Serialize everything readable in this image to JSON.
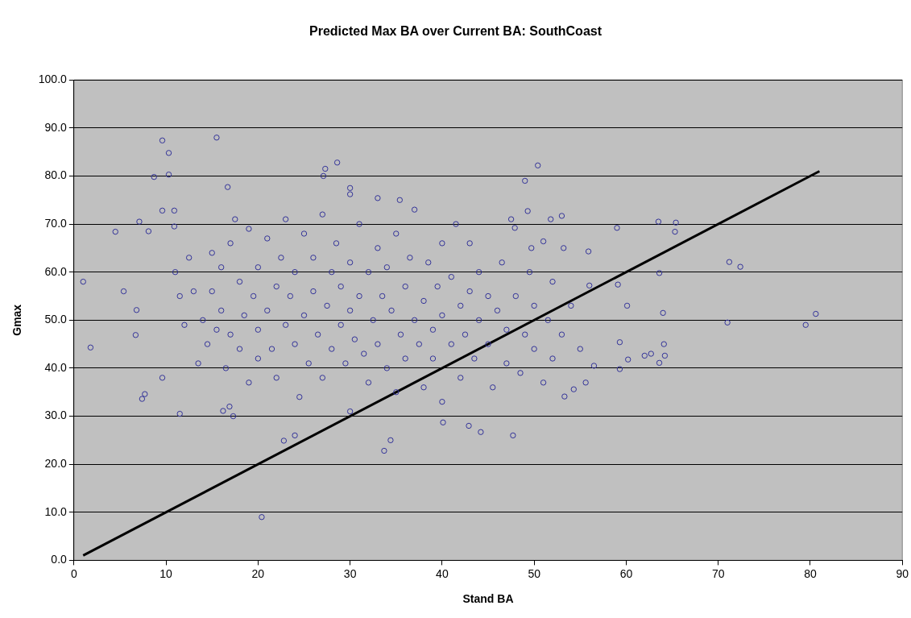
{
  "chart_data": {
    "type": "scatter",
    "title": "Predicted Max BA over Current BA: SouthCoast",
    "xlabel": "Stand BA",
    "ylabel": "Gmax",
    "xlim": [
      0,
      90
    ],
    "xticks": [
      0,
      10,
      20,
      30,
      40,
      50,
      60,
      70,
      80,
      90
    ],
    "ylim": [
      0,
      100
    ],
    "yticks": [
      {
        "value": 0,
        "label": "0.0"
      },
      {
        "value": 10,
        "label": "10.0"
      },
      {
        "value": 20,
        "label": "20.0"
      },
      {
        "value": 30,
        "label": "30.0"
      },
      {
        "value": 40,
        "label": "40.0"
      },
      {
        "value": 50,
        "label": "50.0"
      },
      {
        "value": 60,
        "label": "60.0"
      },
      {
        "value": 70,
        "label": "70.0"
      },
      {
        "value": 80,
        "label": "80.0"
      },
      {
        "value": 90,
        "label": "90.0"
      },
      {
        "value": 100,
        "label": "100.0"
      }
    ],
    "grid": "y",
    "legend": false,
    "series": [
      {
        "marker": "circle",
        "color": "#333399",
        "x": [
          1,
          1.8,
          4.5,
          5.4,
          6.8,
          6.7,
          7.1,
          7.4,
          7.7,
          8.1,
          8.7,
          9.6,
          10.3,
          10.3,
          9.6,
          10.9,
          10.9,
          9.6,
          11.5,
          15.5,
          16.7,
          16.2,
          16.9,
          17.3,
          20.4,
          22.8,
          24,
          27.3,
          27.1,
          28.6,
          30,
          30,
          33,
          35.4,
          33.7,
          34.4,
          40.1,
          42.9,
          44.2,
          47.7,
          50.4,
          49,
          49.3,
          47.9,
          51,
          51.8,
          53,
          49.7,
          53.2,
          53.3,
          54.3,
          55.6,
          56.5,
          55.9,
          56,
          59.1,
          59.3,
          59,
          59.3,
          60.2,
          60.1,
          62,
          62.7,
          63.6,
          64.1,
          64.2,
          65.3,
          65.4,
          63.5,
          63.6,
          64,
          71,
          71.2,
          72.4,
          79.5,
          80.6,
          11,
          11.5,
          12,
          12.5,
          13,
          13.5,
          14,
          14.5,
          15,
          15,
          15.5,
          16,
          16,
          16.5,
          17,
          17,
          17.5,
          18,
          18,
          18.5,
          19,
          19,
          19.5,
          20,
          20,
          20,
          21,
          21,
          21.5,
          22,
          22,
          22.5,
          23,
          23,
          23.5,
          24,
          24,
          24.5,
          25,
          25,
          25.5,
          26,
          26,
          26.5,
          27,
          27,
          27.5,
          28,
          28,
          28.5,
          29,
          29,
          29.5,
          30,
          30,
          30,
          30.5,
          31,
          31,
          31.5,
          32,
          32,
          32.5,
          33,
          33,
          33.5,
          34,
          34,
          34.5,
          35,
          35,
          35.5,
          36,
          36,
          36.5,
          37,
          37,
          37.5,
          38,
          38,
          38.5,
          39,
          39,
          39.5,
          40,
          40,
          40,
          41,
          41,
          41.5,
          42,
          42,
          42.5,
          43,
          43,
          43.5,
          44,
          44,
          45,
          45,
          45.5,
          46,
          46.5,
          47,
          47,
          47.5,
          48,
          48.5,
          49,
          49.5,
          50,
          50,
          51,
          51.5,
          52,
          52,
          53,
          54,
          55
        ],
        "values": [
          58,
          44.3,
          68.4,
          56,
          52.1,
          46.9,
          70.5,
          33.6,
          34.6,
          68.5,
          79.8,
          87.4,
          84.8,
          80.3,
          72.8,
          72.8,
          69.5,
          38,
          30.5,
          88,
          77.7,
          31.1,
          32,
          30,
          9,
          24.9,
          26,
          81.5,
          80,
          82.8,
          77.5,
          76.2,
          75.4,
          75,
          22.8,
          25,
          28.7,
          28,
          26.7,
          26,
          82.2,
          79,
          72.7,
          69.2,
          66.4,
          71,
          71.7,
          65,
          65,
          34.1,
          35.6,
          37,
          40.5,
          64.3,
          57.2,
          57.4,
          45.4,
          69.2,
          39.8,
          41.8,
          53,
          42.6,
          43,
          41.1,
          45,
          42.6,
          68.4,
          70.3,
          70.5,
          59.8,
          51.5,
          49.5,
          62.1,
          61.1,
          49,
          51.3,
          60,
          55,
          49,
          63,
          56,
          41,
          50,
          45,
          64,
          56,
          48,
          52,
          61,
          40,
          47,
          66,
          71,
          44,
          58,
          51,
          69,
          37,
          55,
          48,
          61,
          42,
          67,
          52,
          44,
          57,
          38,
          63,
          49,
          71,
          55,
          45,
          60,
          34,
          51,
          68,
          41,
          56,
          63,
          47,
          72,
          38,
          53,
          60,
          44,
          66,
          49,
          57,
          41,
          62,
          52,
          31,
          46,
          70,
          55,
          43,
          60,
          37,
          50,
          65,
          45,
          55,
          40,
          61,
          52,
          68,
          35,
          47,
          57,
          42,
          63,
          50,
          73,
          45,
          54,
          36,
          62,
          48,
          42,
          57,
          51,
          66,
          33,
          45,
          59,
          70,
          53,
          38,
          47,
          66,
          56,
          42,
          50,
          60,
          45,
          55,
          36,
          52,
          62,
          48,
          41,
          71,
          55,
          39,
          47,
          60,
          53,
          44,
          37,
          50,
          58,
          42,
          47,
          53,
          44
        ]
      },
      {
        "type": "line",
        "marker": "none",
        "color": "#000000",
        "x": [
          1,
          81
        ],
        "values": [
          1,
          81
        ]
      }
    ]
  }
}
